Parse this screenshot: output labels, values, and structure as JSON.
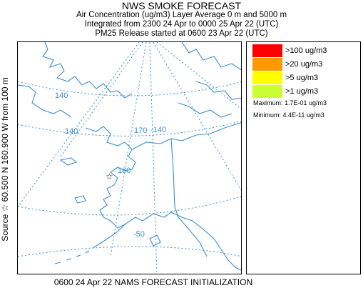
{
  "header": {
    "title": "NWS SMOKE FORECAST",
    "line2": "Air Concentration (ug/m3) Layer Average    0 m and  5000 m",
    "line3": "Integrated from 2300 24 Apr to 0000 25 Apr 22 (UTC)",
    "line4": "PM25 Release started at 0600 23 Apr 22 (UTC)"
  },
  "map": {
    "grid_labels": [
      "140",
      "160",
      "-140",
      "170",
      "150",
      "-50"
    ],
    "source_marker": "☆",
    "line_color": "#3a8ed0"
  },
  "legend": {
    "items": [
      {
        "label": ">100 ug/m3",
        "color": "#ff0000"
      },
      {
        "label": ">20 ug/m3",
        "color": "#ff9900"
      },
      {
        "label": ">5 ug/m3",
        "color": "#ffff00"
      },
      {
        "label": ">1 ug/m3",
        "color": "#ccff33"
      }
    ],
    "maximum": "Maximum: 1.7E-01 ug/m3",
    "minimum": "Minimum: 4.4E-11 ug/m3"
  },
  "side_label": "Source ☆  60.500  N 160.900  W    from  100 m",
  "footer": "0600 24 Apr 22 NAMS FORECAST INITIALIZATION"
}
